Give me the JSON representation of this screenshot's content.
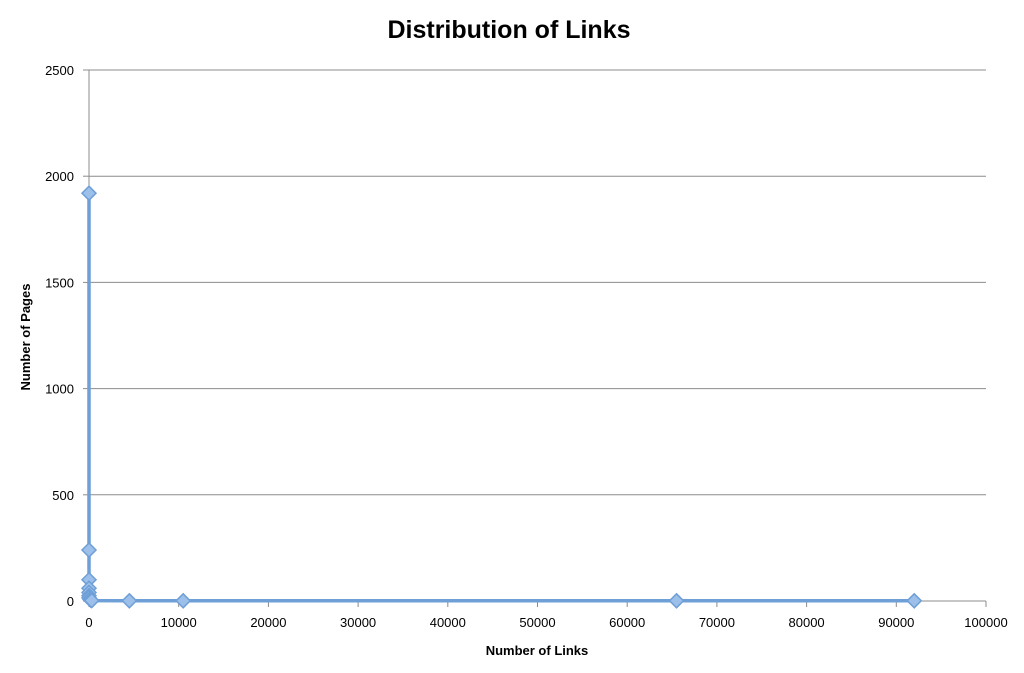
{
  "chart_data": {
    "type": "scatter",
    "title": "Distribution of Links",
    "xlabel": "Number of Links",
    "ylabel": "Number of Pages",
    "xlim": [
      0,
      100000
    ],
    "ylim": [
      0,
      2500
    ],
    "x_ticks": [
      0,
      10000,
      20000,
      30000,
      40000,
      50000,
      60000,
      70000,
      80000,
      90000,
      100000
    ],
    "y_ticks": [
      0,
      500,
      1000,
      1500,
      2000,
      2500
    ],
    "grid": "horizontal",
    "legend": "none",
    "series": [
      {
        "color": "#6e9fd6",
        "marker": "diamond",
        "connected": true,
        "points": [
          {
            "x": 0,
            "y": 1920
          },
          {
            "x": 0,
            "y": 240
          },
          {
            "x": 0,
            "y": 100
          },
          {
            "x": 0,
            "y": 60
          },
          {
            "x": 0,
            "y": 40
          },
          {
            "x": 0,
            "y": 25
          },
          {
            "x": 0,
            "y": 15
          },
          {
            "x": 100,
            "y": 8
          },
          {
            "x": 200,
            "y": 4
          },
          {
            "x": 300,
            "y": 2
          },
          {
            "x": 4500,
            "y": 1
          },
          {
            "x": 10500,
            "y": 1
          },
          {
            "x": 65500,
            "y": 1
          },
          {
            "x": 92000,
            "y": 1
          }
        ]
      }
    ]
  }
}
